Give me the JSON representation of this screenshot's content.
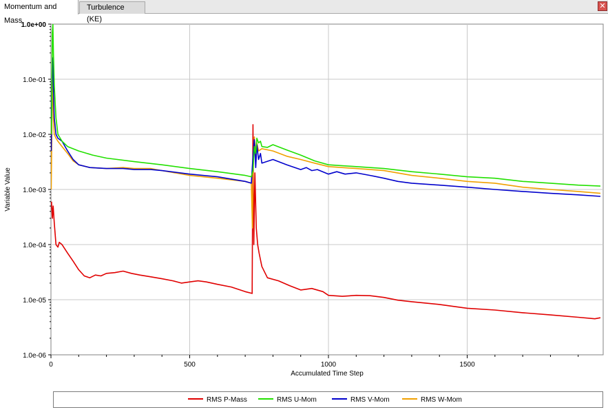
{
  "tabs": [
    {
      "label": "Momentum and Mass",
      "active": true
    },
    {
      "label": "Turbulence (KE)",
      "active": false
    }
  ],
  "close_icon": "close-icon",
  "colors": {
    "p_mass": "#e00000",
    "u_mom": "#22e000",
    "v_mom": "#0000cc",
    "w_mom": "#f0a000",
    "grid": "#c8c8c8"
  },
  "chart_data": {
    "type": "line",
    "xlabel": "Accumulated Time Step",
    "ylabel": "Variable Value",
    "x_ticks": [
      0,
      500,
      1000,
      1500
    ],
    "y_ticks": [
      "1.0e-06",
      "1.0e-05",
      "1.0e-04",
      "1.0e-03",
      "1.0e-02",
      "1.0e-01",
      "1.0e+00"
    ],
    "xlim": [
      0,
      1990
    ],
    "ylim": [
      1e-06,
      1.0
    ],
    "yscale": "log",
    "grid": true,
    "legend_position": "bottom",
    "series": [
      {
        "name": "RMS P-Mass",
        "color": "#e00000",
        "points": [
          [
            2,
            0.0006
          ],
          [
            5,
            0.0003
          ],
          [
            8,
            0.0005
          ],
          [
            12,
            0.00025
          ],
          [
            18,
            0.0001
          ],
          [
            25,
            9e-05
          ],
          [
            30,
            0.00011
          ],
          [
            40,
            0.0001
          ],
          [
            60,
            7e-05
          ],
          [
            80,
            5e-05
          ],
          [
            100,
            3.5e-05
          ],
          [
            120,
            2.7e-05
          ],
          [
            140,
            2.5e-05
          ],
          [
            160,
            2.8e-05
          ],
          [
            180,
            2.7e-05
          ],
          [
            200,
            3e-05
          ],
          [
            230,
            3.1e-05
          ],
          [
            260,
            3.3e-05
          ],
          [
            290,
            3e-05
          ],
          [
            320,
            2.8e-05
          ],
          [
            360,
            2.6e-05
          ],
          [
            400,
            2.4e-05
          ],
          [
            440,
            2.2e-05
          ],
          [
            470,
            2e-05
          ],
          [
            500,
            2.1e-05
          ],
          [
            530,
            2.2e-05
          ],
          [
            560,
            2.1e-05
          ],
          [
            600,
            1.9e-05
          ],
          [
            650,
            1.7e-05
          ],
          [
            700,
            1.4e-05
          ],
          [
            725,
            1.3e-05
          ],
          [
            728,
            0.015
          ],
          [
            731,
            0.0001
          ],
          [
            735,
            0.002
          ],
          [
            740,
            0.0002
          ],
          [
            745,
            0.0001
          ],
          [
            750,
            7e-05
          ],
          [
            760,
            4e-05
          ],
          [
            780,
            2.5e-05
          ],
          [
            820,
            2.2e-05
          ],
          [
            860,
            1.8e-05
          ],
          [
            900,
            1.5e-05
          ],
          [
            940,
            1.6e-05
          ],
          [
            980,
            1.4e-05
          ],
          [
            1000,
            1.2e-05
          ],
          [
            1050,
            1.15e-05
          ],
          [
            1100,
            1.2e-05
          ],
          [
            1150,
            1.18e-05
          ],
          [
            1200,
            1.1e-05
          ],
          [
            1250,
            9.8e-06
          ],
          [
            1300,
            9.2e-06
          ],
          [
            1400,
            8.2e-06
          ],
          [
            1500,
            7e-06
          ],
          [
            1600,
            6.5e-06
          ],
          [
            1700,
            5.8e-06
          ],
          [
            1800,
            5.3e-06
          ],
          [
            1900,
            4.8e-06
          ],
          [
            1960,
            4.5e-06
          ],
          [
            1980,
            4.7e-06
          ]
        ]
      },
      {
        "name": "RMS U-Mom",
        "color": "#22e000",
        "points": [
          [
            1,
            0.01
          ],
          [
            3,
            0.03
          ],
          [
            5,
            0.7
          ],
          [
            7,
            1.0
          ],
          [
            9,
            0.3
          ],
          [
            12,
            0.08
          ],
          [
            18,
            0.02
          ],
          [
            25,
            0.01
          ],
          [
            40,
            0.0075
          ],
          [
            60,
            0.006
          ],
          [
            100,
            0.005
          ],
          [
            150,
            0.0042
          ],
          [
            200,
            0.0037
          ],
          [
            300,
            0.0032
          ],
          [
            400,
            0.0028
          ],
          [
            500,
            0.0024
          ],
          [
            600,
            0.0021
          ],
          [
            700,
            0.0018
          ],
          [
            722,
            0.0017
          ],
          [
            728,
            0.0022
          ],
          [
            733,
            0.006
          ],
          [
            738,
            0.0045
          ],
          [
            742,
            0.0085
          ],
          [
            748,
            0.007
          ],
          [
            755,
            0.0075
          ],
          [
            760,
            0.006
          ],
          [
            780,
            0.0058
          ],
          [
            800,
            0.0065
          ],
          [
            850,
            0.0052
          ],
          [
            900,
            0.0042
          ],
          [
            950,
            0.0033
          ],
          [
            1000,
            0.0028
          ],
          [
            1100,
            0.0026
          ],
          [
            1200,
            0.0024
          ],
          [
            1300,
            0.0021
          ],
          [
            1400,
            0.0019
          ],
          [
            1500,
            0.0017
          ],
          [
            1600,
            0.0016
          ],
          [
            1700,
            0.0014
          ],
          [
            1800,
            0.0013
          ],
          [
            1900,
            0.0012
          ],
          [
            1980,
            0.00115
          ]
        ]
      },
      {
        "name": "RMS V-Mom",
        "color": "#0000cc",
        "points": [
          [
            1,
            0.005
          ],
          [
            3,
            0.05
          ],
          [
            5,
            0.25
          ],
          [
            7,
            0.2
          ],
          [
            9,
            0.07
          ],
          [
            12,
            0.02
          ],
          [
            18,
            0.01
          ],
          [
            25,
            0.0085
          ],
          [
            40,
            0.0075
          ],
          [
            60,
            0.005
          ],
          [
            80,
            0.0035
          ],
          [
            100,
            0.0028
          ],
          [
            140,
            0.0025
          ],
          [
            200,
            0.0024
          ],
          [
            260,
            0.0024
          ],
          [
            300,
            0.0023
          ],
          [
            360,
            0.0023
          ],
          [
            400,
            0.0022
          ],
          [
            500,
            0.0019
          ],
          [
            600,
            0.0017
          ],
          [
            700,
            0.0014
          ],
          [
            722,
            0.0013
          ],
          [
            728,
            0.004
          ],
          [
            733,
            0.008
          ],
          [
            738,
            0.0025
          ],
          [
            742,
            0.0065
          ],
          [
            748,
            0.0035
          ],
          [
            755,
            0.0045
          ],
          [
            760,
            0.003
          ],
          [
            800,
            0.0035
          ],
          [
            850,
            0.0028
          ],
          [
            900,
            0.0023
          ],
          [
            920,
            0.0025
          ],
          [
            940,
            0.0022
          ],
          [
            960,
            0.0023
          ],
          [
            1000,
            0.0019
          ],
          [
            1030,
            0.0021
          ],
          [
            1060,
            0.0019
          ],
          [
            1100,
            0.002
          ],
          [
            1150,
            0.0018
          ],
          [
            1200,
            0.0016
          ],
          [
            1250,
            0.0014
          ],
          [
            1300,
            0.0013
          ],
          [
            1400,
            0.0012
          ],
          [
            1500,
            0.0011
          ],
          [
            1600,
            0.001
          ],
          [
            1700,
            0.00092
          ],
          [
            1800,
            0.00085
          ],
          [
            1900,
            0.0008
          ],
          [
            1980,
            0.00075
          ]
        ]
      },
      {
        "name": "RMS W-Mom",
        "color": "#f0a000",
        "points": [
          [
            1,
            0.001
          ],
          [
            3,
            0.008
          ],
          [
            5,
            0.15
          ],
          [
            7,
            0.06
          ],
          [
            9,
            0.02
          ],
          [
            12,
            0.01
          ],
          [
            18,
            0.0085
          ],
          [
            25,
            0.0075
          ],
          [
            40,
            0.006
          ],
          [
            60,
            0.0045
          ],
          [
            80,
            0.0033
          ],
          [
            100,
            0.0028
          ],
          [
            140,
            0.0025
          ],
          [
            200,
            0.0024
          ],
          [
            260,
            0.0025
          ],
          [
            300,
            0.0024
          ],
          [
            360,
            0.0024
          ],
          [
            400,
            0.0022
          ],
          [
            500,
            0.0018
          ],
          [
            600,
            0.0016
          ],
          [
            700,
            0.0014
          ],
          [
            722,
            0.0013
          ],
          [
            726,
            0.0002
          ],
          [
            729,
            0.003
          ],
          [
            733,
            0.009
          ],
          [
            738,
            0.004
          ],
          [
            742,
            0.007
          ],
          [
            748,
            0.005
          ],
          [
            760,
            0.0055
          ],
          [
            800,
            0.005
          ],
          [
            850,
            0.004
          ],
          [
            900,
            0.0035
          ],
          [
            950,
            0.003
          ],
          [
            1000,
            0.0026
          ],
          [
            1100,
            0.0024
          ],
          [
            1200,
            0.0022
          ],
          [
            1300,
            0.0018
          ],
          [
            1400,
            0.0016
          ],
          [
            1500,
            0.0014
          ],
          [
            1600,
            0.0013
          ],
          [
            1700,
            0.0011
          ],
          [
            1800,
            0.001
          ],
          [
            1900,
            0.00092
          ],
          [
            1980,
            0.00085
          ]
        ]
      }
    ]
  }
}
